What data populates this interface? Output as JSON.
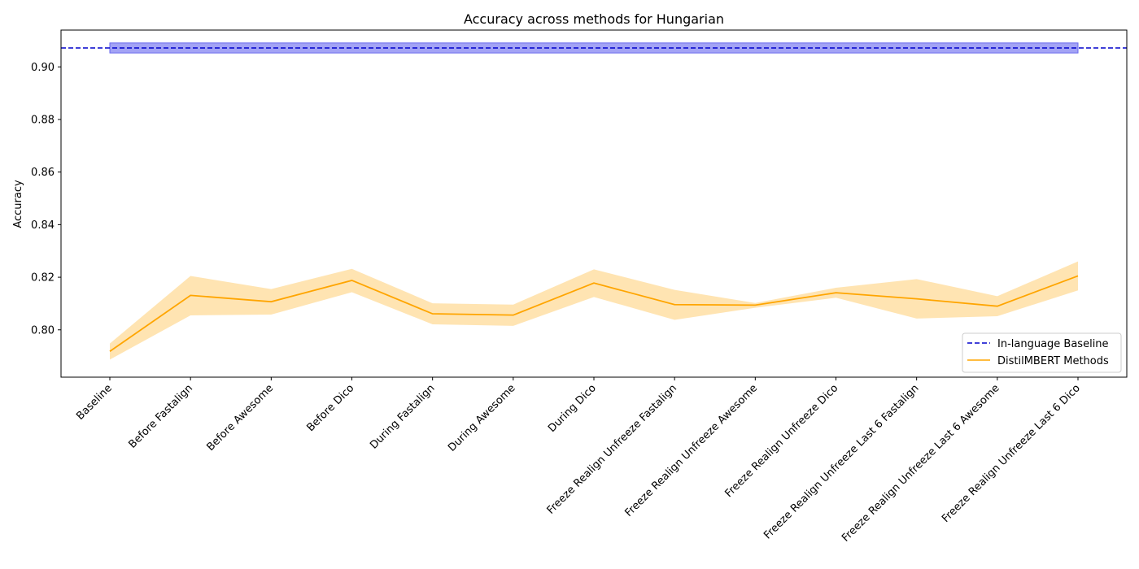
{
  "chart_data": {
    "type": "line",
    "title": "Accuracy across methods for Hungarian",
    "xlabel": "",
    "ylabel": "Accuracy",
    "ylim": [
      0.782,
      0.914
    ],
    "yticks": [
      0.8,
      0.82,
      0.84,
      0.86,
      0.88,
      0.9
    ],
    "ytick_labels": [
      "0.80",
      "0.82",
      "0.84",
      "0.86",
      "0.88",
      "0.90"
    ],
    "grid": false,
    "legend_position": "lower-right",
    "categories": [
      "Baseline",
      "Before Fastalign",
      "Before Awesome",
      "Before Dico",
      "During Fastalign",
      "During Awesome",
      "During Dico",
      "Freeze Realign Unfreeze Fastalign",
      "Freeze Realign Unfreeze Awesome",
      "Freeze Realign Unfreeze Dico",
      "Freeze Realign Unfreeze Last 6 Fastalign",
      "Freeze Realign Unfreeze Last 6 Awesome",
      "Freeze Realign Unfreeze Last 6 Dico"
    ],
    "series": [
      {
        "name": "DistilMBERT Methods",
        "color": "#ffa500",
        "band_color": "#ffd27f",
        "values": [
          0.7918,
          0.8131,
          0.8107,
          0.8188,
          0.8061,
          0.8056,
          0.8178,
          0.8096,
          0.8094,
          0.8141,
          0.8118,
          0.809,
          0.8205
        ],
        "lower": [
          0.7887,
          0.8055,
          0.8058,
          0.8143,
          0.8021,
          0.8015,
          0.8125,
          0.8038,
          0.8084,
          0.8122,
          0.8043,
          0.8052,
          0.815
        ],
        "upper": [
          0.7948,
          0.8205,
          0.8155,
          0.8232,
          0.8101,
          0.8096,
          0.823,
          0.8152,
          0.8102,
          0.816,
          0.8193,
          0.8128,
          0.826
        ]
      },
      {
        "name": "In-language Baseline",
        "color": "#0000cc",
        "style": "dashed",
        "value": 0.9072,
        "band_lower": 0.9053,
        "band_upper": 0.9091,
        "band_color": "#6666ee"
      }
    ],
    "legend": [
      {
        "label": "In-language Baseline",
        "color": "#0000cc",
        "style": "dashed"
      },
      {
        "label": "DistilMBERT Methods",
        "color": "#ffa500",
        "style": "solid"
      }
    ]
  }
}
